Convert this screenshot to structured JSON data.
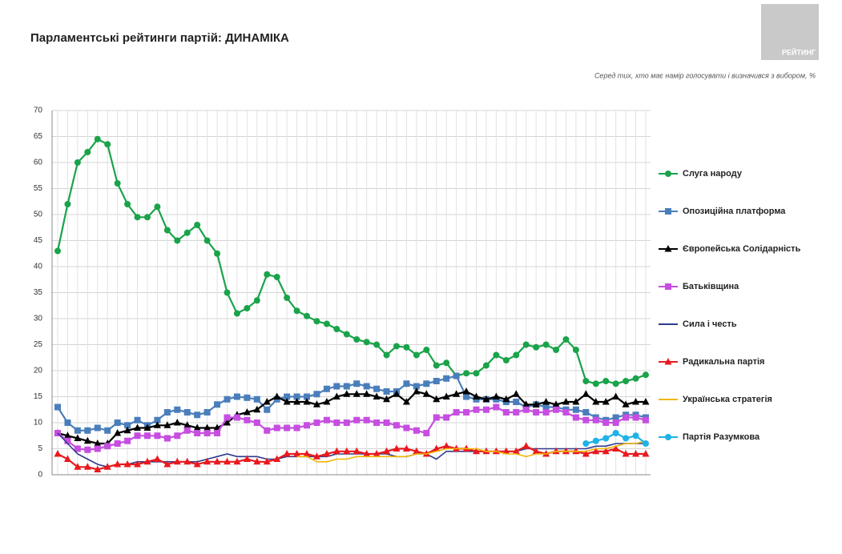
{
  "chart_data": {
    "type": "line",
    "title": "Парламентські рейтинги партій: ДИНАМІКА",
    "subtitle": "Серед тих, хто має намір голосувати і визначився з вибором, %",
    "logo": "РЕЙТИНГ",
    "categories": [
      null,
      null,
      null,
      null,
      null,
      null,
      null,
      null,
      null,
      null,
      null,
      null,
      null,
      null,
      null,
      null,
      null,
      null,
      null,
      null,
      null,
      null,
      null,
      null,
      null,
      null,
      null,
      null,
      null,
      null,
      null,
      null,
      null,
      null,
      null,
      null,
      null,
      null,
      null,
      null,
      null,
      null,
      null,
      null,
      null,
      null,
      null,
      null,
      null,
      null,
      null,
      null,
      null,
      null,
      null,
      null,
      null,
      null,
      null,
      null
    ],
    "ylim": [
      0,
      70
    ],
    "yticks": [
      0,
      5,
      10,
      15,
      20,
      25,
      30,
      35,
      40,
      45,
      50,
      55,
      60,
      65,
      70
    ],
    "grid": true,
    "legend": "right",
    "series": [
      {
        "name": "Слуга народу",
        "color": "#1aa34a",
        "marker": "circle",
        "values": [
          43,
          52,
          60,
          62,
          64.5,
          63.5,
          56,
          52,
          49.5,
          49.5,
          51.5,
          47,
          45,
          46.5,
          48,
          45,
          42.5,
          35,
          31,
          32,
          33.5,
          38.5,
          38,
          34,
          31.5,
          30.5,
          29.5,
          29,
          28,
          27,
          26,
          25.5,
          25,
          23,
          24.7,
          24.5,
          23,
          24,
          21,
          21.5,
          19,
          19.5,
          19.5,
          21,
          23,
          22,
          23,
          25,
          24.5,
          25,
          24,
          26,
          24,
          18,
          17.5,
          18,
          17.5,
          18,
          18.5,
          19.2
        ]
      },
      {
        "name": "Опозиційна платформа",
        "color": "#4a7ebb",
        "marker": "square",
        "values": [
          13,
          10,
          8.5,
          8.5,
          9,
          8.5,
          10,
          9.5,
          10.5,
          9.5,
          10.5,
          12,
          12.5,
          12,
          11.5,
          12,
          13.5,
          14.5,
          15,
          14.8,
          14.5,
          12.5,
          14.5,
          15,
          15,
          15,
          15.5,
          16.5,
          17,
          17,
          17.5,
          17,
          16.5,
          16,
          16,
          17.5,
          17,
          17.5,
          18,
          18.5,
          19,
          15,
          14.5,
          14.5,
          14.5,
          14,
          14,
          13,
          13.5,
          13,
          13,
          12.5,
          12.5,
          12,
          11,
          10.5,
          11,
          11.5,
          11.5,
          11
        ]
      },
      {
        "name": "Європейська Солідарність",
        "color": "#000000",
        "marker": "triangle",
        "values": [
          8,
          7.5,
          7,
          6.5,
          6,
          6,
          8,
          8.5,
          9,
          9,
          9.5,
          9.5,
          10,
          9.5,
          9,
          9,
          9,
          10,
          11.5,
          12,
          12.5,
          14,
          15,
          14,
          14,
          14,
          13.5,
          14,
          15,
          15.5,
          15.5,
          15.5,
          15,
          14.5,
          15.5,
          14,
          16,
          15.5,
          14.5,
          15,
          15.5,
          16,
          15,
          14.5,
          15,
          14.5,
          15.5,
          13.5,
          13.5,
          14,
          13.5,
          14,
          14,
          15.5,
          14,
          14,
          15,
          13.5,
          14,
          14
        ]
      },
      {
        "name": "Батьківщина",
        "color": "#c64ee0",
        "marker": "square",
        "values": [
          8,
          6.5,
          5,
          4.8,
          5,
          5.5,
          6,
          6.5,
          7.5,
          7.5,
          7.5,
          7,
          7.5,
          8.5,
          8,
          8,
          8,
          11,
          11,
          10.5,
          10,
          8.5,
          9,
          9,
          9,
          9.5,
          10,
          10.5,
          10,
          10,
          10.5,
          10.5,
          10,
          10,
          9.5,
          9,
          8.5,
          8,
          11,
          11,
          12,
          12,
          12.5,
          12.5,
          13,
          12,
          12,
          12.5,
          12,
          12,
          12.5,
          12,
          11,
          10.5,
          10.5,
          10,
          10,
          11,
          11,
          10.5
        ]
      },
      {
        "name": "Сила і честь",
        "color": "#2e3a8c",
        "marker": "none",
        "values": [
          8,
          6,
          4,
          3,
          2,
          1.5,
          2,
          2,
          2.5,
          2.5,
          2.5,
          2.5,
          2.5,
          2.5,
          2.5,
          3,
          3.5,
          4,
          3.5,
          3.5,
          3.5,
          3,
          3,
          3.5,
          3.5,
          3.5,
          3.5,
          3.5,
          4,
          4,
          4,
          4,
          4,
          4,
          3.5,
          3.5,
          4,
          4,
          3,
          4.5,
          4.5,
          4.5,
          4.5,
          4.5,
          4.5,
          4.5,
          4.5,
          5,
          5,
          5,
          5,
          5,
          5,
          5,
          5.5,
          5.5,
          6,
          6,
          6,
          6
        ]
      },
      {
        "name": "Радикальна партія",
        "color": "#e8191e",
        "marker": "triangle",
        "values": [
          4,
          3,
          1.5,
          1.5,
          1,
          1.5,
          2,
          2,
          2,
          2.5,
          3,
          2,
          2.5,
          2.5,
          2,
          2.5,
          2.5,
          2.5,
          2.5,
          3,
          2.5,
          2.5,
          3,
          4,
          4,
          4,
          3.5,
          4,
          4.5,
          4.5,
          4.5,
          4,
          4,
          4.5,
          5,
          5,
          4.5,
          4,
          5,
          5.5,
          5,
          5,
          4.5,
          4.5,
          4.5,
          4.5,
          4.5,
          5.5,
          4.5,
          4,
          4.5,
          4.5,
          4.5,
          4,
          4.5,
          4.5,
          5,
          4,
          4,
          4
        ]
      },
      {
        "name": "Українська стратегія",
        "color": "#f2b705",
        "marker": "none",
        "values": [
          null,
          null,
          null,
          null,
          null,
          null,
          null,
          null,
          null,
          null,
          null,
          null,
          null,
          null,
          null,
          null,
          null,
          null,
          null,
          null,
          null,
          null,
          null,
          null,
          3.5,
          3.5,
          2.5,
          2.5,
          3,
          3,
          3.5,
          3.5,
          3.5,
          3.5,
          3.5,
          3.5,
          4,
          4,
          4.5,
          5,
          5,
          5,
          5,
          4.5,
          4.5,
          4,
          4,
          3.5,
          4,
          4,
          4.5,
          4.5,
          4.5,
          4.5,
          5,
          5,
          5.5,
          6,
          6,
          6.5
        ]
      },
      {
        "name": "Партія Разумкова",
        "color": "#1fb2e6",
        "marker": "circle",
        "values": [
          null,
          null,
          null,
          null,
          null,
          null,
          null,
          null,
          null,
          null,
          null,
          null,
          null,
          null,
          null,
          null,
          null,
          null,
          null,
          null,
          null,
          null,
          null,
          null,
          null,
          null,
          null,
          null,
          null,
          null,
          null,
          null,
          null,
          null,
          null,
          null,
          null,
          null,
          null,
          null,
          null,
          null,
          null,
          null,
          null,
          null,
          null,
          null,
          null,
          null,
          null,
          null,
          null,
          6,
          6.5,
          7,
          8,
          7,
          7.5,
          6
        ]
      }
    ]
  }
}
